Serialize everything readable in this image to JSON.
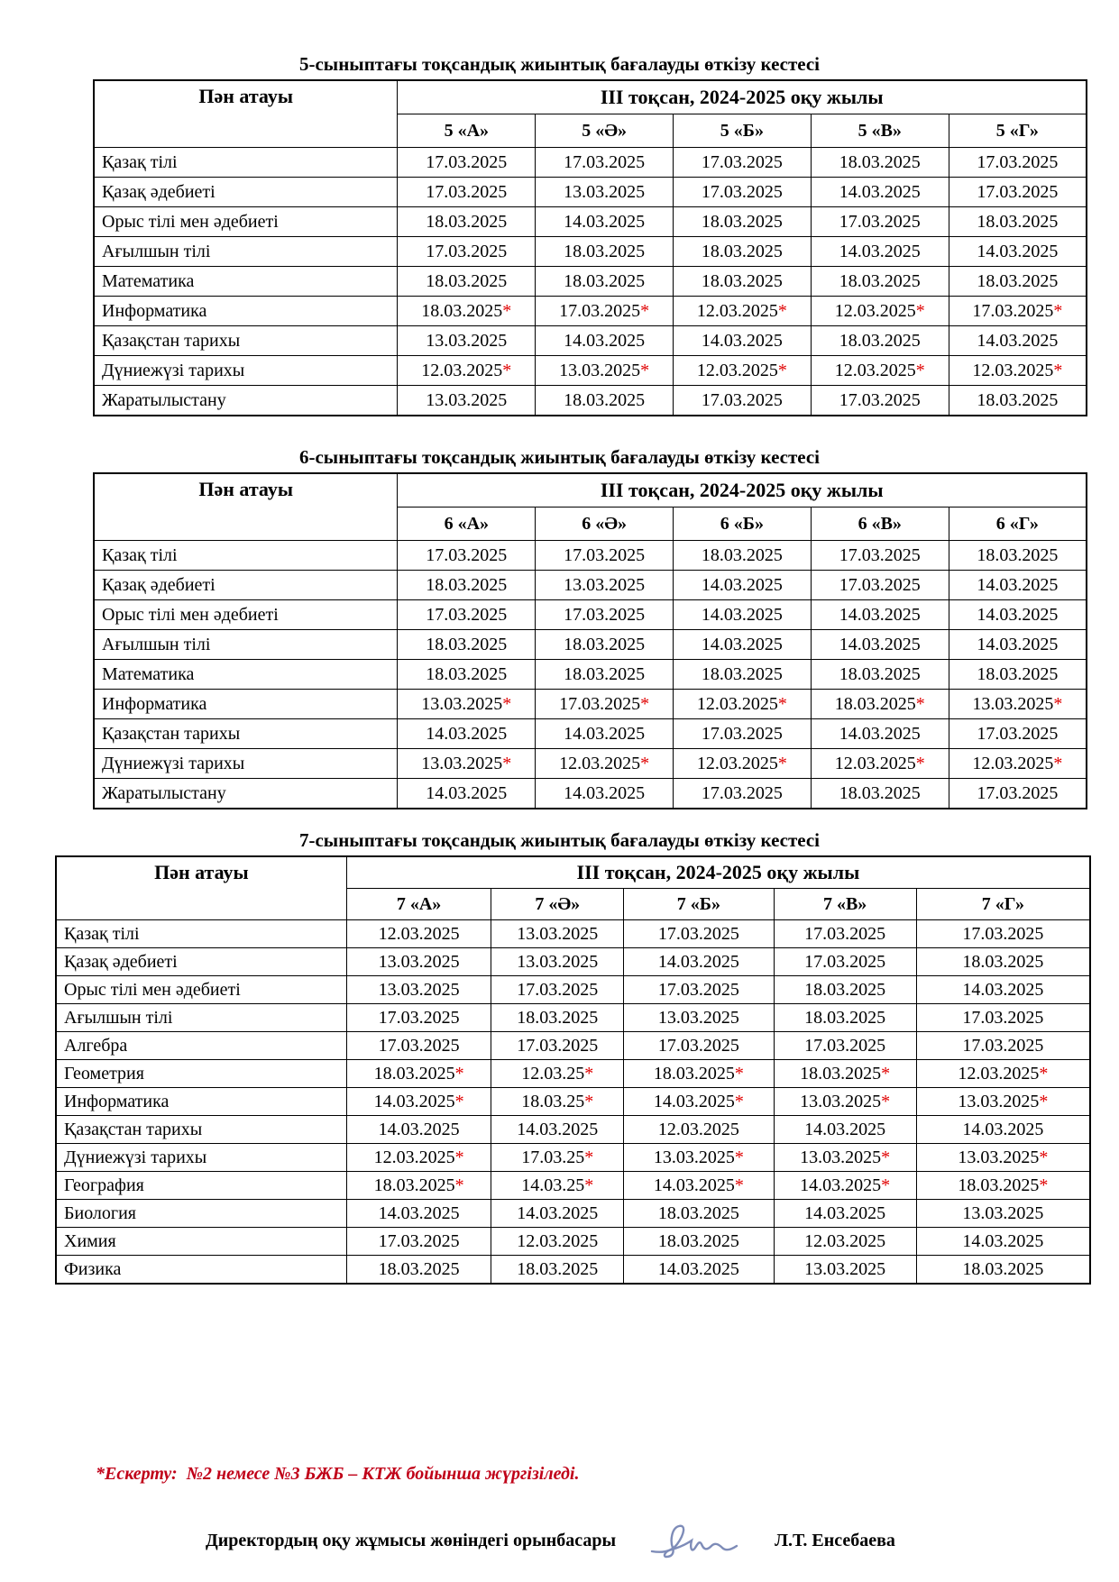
{
  "colors": {
    "asterisk": "#e00000",
    "note_text": "#c00018",
    "signature_ink": "#7080b0"
  },
  "footer": {
    "note": "*Ескерту:  №2 немесе №3 БЖБ – КТЖ бойынша жүргізіледі.",
    "signature_label": "Директордың оқу жұмысы жөніндегі орынбасары",
    "signature_name": "Л.Т. Енсебаева"
  },
  "tables": [
    {
      "grade": "5",
      "title": "5-сыныптағы тоқсандық жиынтық бағалауды өткізу кестесі",
      "subject_header": "Пән атауы",
      "term_header": "ІІІ тоқсан, 2024-2025 оқу жылы",
      "class_headers": [
        "5 «А»",
        "5 «Ә»",
        "5 «Б»",
        "5 «В»",
        "5 «Г»"
      ],
      "rows": [
        {
          "subject": "Қазақ тілі",
          "dates": [
            "17.03.2025",
            "17.03.2025",
            "17.03.2025",
            "18.03.2025",
            "17.03.2025"
          ]
        },
        {
          "subject": "Қазақ әдебиеті",
          "dates": [
            "17.03.2025",
            "13.03.2025",
            "17.03.2025",
            "14.03.2025",
            "17.03.2025"
          ]
        },
        {
          "subject": "Орыс тілі мен әдебиеті",
          "dates": [
            "18.03.2025",
            "14.03.2025",
            "18.03.2025",
            "17.03.2025",
            "18.03.2025"
          ]
        },
        {
          "subject": "Ағылшын тілі",
          "dates": [
            "17.03.2025",
            "18.03.2025",
            "18.03.2025",
            "14.03.2025",
            "14.03.2025"
          ]
        },
        {
          "subject": "Математика",
          "dates": [
            "18.03.2025",
            "18.03.2025",
            "18.03.2025",
            "18.03.2025",
            "18.03.2025"
          ]
        },
        {
          "subject": "Информатика",
          "dates": [
            "18.03.2025*",
            "17.03.2025*",
            "12.03.2025*",
            "12.03.2025*",
            "17.03.2025*"
          ]
        },
        {
          "subject": "Қазақстан тарихы",
          "dates": [
            "13.03.2025",
            "14.03.2025",
            "14.03.2025",
            "18.03.2025",
            "14.03.2025"
          ]
        },
        {
          "subject": "Дүниежүзі тарихы",
          "dates": [
            "12.03.2025*",
            "13.03.2025*",
            "12.03.2025*",
            "12.03.2025*",
            "12.03.2025*"
          ]
        },
        {
          "subject": "Жаратылыстану",
          "dates": [
            "13.03.2025",
            "18.03.2025",
            "17.03.2025",
            "17.03.2025",
            "18.03.2025"
          ]
        }
      ]
    },
    {
      "grade": "6",
      "title": "6-сыныптағы тоқсандық жиынтық бағалауды өткізу кестесі",
      "subject_header": "Пән атауы",
      "term_header": "ІІІ тоқсан, 2024-2025 оқу жылы",
      "class_headers": [
        "6 «А»",
        "6 «Ә»",
        "6 «Б»",
        "6 «В»",
        "6 «Г»"
      ],
      "rows": [
        {
          "subject": "Қазақ тілі",
          "dates": [
            "17.03.2025",
            "17.03.2025",
            "18.03.2025",
            "17.03.2025",
            "18.03.2025"
          ]
        },
        {
          "subject": "Қазақ әдебиеті",
          "dates": [
            "18.03.2025",
            "13.03.2025",
            "14.03.2025",
            "17.03.2025",
            "14.03.2025"
          ]
        },
        {
          "subject": "Орыс тілі мен әдебиеті",
          "dates": [
            "17.03.2025",
            "17.03.2025",
            "14.03.2025",
            "14.03.2025",
            "14.03.2025"
          ]
        },
        {
          "subject": "Ағылшын тілі",
          "dates": [
            "18.03.2025",
            "18.03.2025",
            "14.03.2025",
            "14.03.2025",
            "14.03.2025"
          ]
        },
        {
          "subject": "Математика",
          "dates": [
            "18.03.2025",
            "18.03.2025",
            "18.03.2025",
            "18.03.2025",
            "18.03.2025"
          ]
        },
        {
          "subject": "Информатика",
          "dates": [
            "13.03.2025*",
            "17.03.2025*",
            "12.03.2025*",
            "18.03.2025*",
            "13.03.2025*"
          ]
        },
        {
          "subject": "Қазақстан тарихы",
          "dates": [
            "14.03.2025",
            "14.03.2025",
            "17.03.2025",
            "14.03.2025",
            "17.03.2025"
          ]
        },
        {
          "subject": "Дүниежүзі тарихы",
          "dates": [
            "13.03.2025*",
            "12.03.2025*",
            "12.03.2025*",
            "12.03.2025*",
            "12.03.2025*"
          ]
        },
        {
          "subject": "Жаратылыстану",
          "dates": [
            "14.03.2025",
            "14.03.2025",
            "17.03.2025",
            "18.03.2025",
            "17.03.2025"
          ]
        }
      ]
    },
    {
      "grade": "7",
      "title": "7-сыныптағы тоқсандық жиынтық бағалауды өткізу кестесі",
      "subject_header": "Пән атауы",
      "term_header": "ІІІ тоқсан, 2024-2025 оқу жылы",
      "class_headers": [
        "7 «А»",
        "7 «Ә»",
        "7 «Б»",
        "7 «В»",
        "7 «Г»"
      ],
      "rows": [
        {
          "subject": "Қазақ тілі",
          "dates": [
            "12.03.2025",
            "13.03.2025",
            "17.03.2025",
            "17.03.2025",
            "17.03.2025"
          ]
        },
        {
          "subject": "Қазақ әдебиеті",
          "dates": [
            "13.03.2025",
            "13.03.2025",
            "14.03.2025",
            "17.03.2025",
            "18.03.2025"
          ]
        },
        {
          "subject": "Орыс тілі мен әдебиеті",
          "dates": [
            "13.03.2025",
            "17.03.2025",
            "17.03.2025",
            "18.03.2025",
            "14.03.2025"
          ]
        },
        {
          "subject": "Ағылшын тілі",
          "dates": [
            "17.03.2025",
            "18.03.2025",
            "13.03.2025",
            "18.03.2025",
            "17.03.2025"
          ]
        },
        {
          "subject": "Алгебра",
          "dates": [
            "17.03.2025",
            "17.03.2025",
            "17.03.2025",
            "17.03.2025",
            "17.03.2025"
          ]
        },
        {
          "subject": "Геометрия",
          "dates": [
            "18.03.2025*",
            "12.03.25*",
            "18.03.2025*",
            "18.03.2025*",
            "12.03.2025*"
          ]
        },
        {
          "subject": "Информатика",
          "dates": [
            "14.03.2025*",
            "18.03.25*",
            "14.03.2025*",
            "13.03.2025*",
            "13.03.2025*"
          ]
        },
        {
          "subject": "Қазақстан тарихы",
          "dates": [
            "14.03.2025",
            "14.03.2025",
            "12.03.2025",
            "14.03.2025",
            "14.03.2025"
          ]
        },
        {
          "subject": "Дүниежүзі тарихы",
          "dates": [
            "12.03.2025*",
            "17.03.25*",
            "13.03.2025*",
            "13.03.2025*",
            "13.03.2025*"
          ]
        },
        {
          "subject": "География",
          "dates": [
            "18.03.2025*",
            "14.03.25*",
            "14.03.2025*",
            "14.03.2025*",
            "18.03.2025*"
          ]
        },
        {
          "subject": "Биология",
          "dates": [
            "14.03.2025",
            "14.03.2025",
            "18.03.2025",
            "14.03.2025",
            "13.03.2025"
          ]
        },
        {
          "subject": "Химия",
          "dates": [
            "17.03.2025",
            "12.03.2025",
            "18.03.2025",
            "12.03.2025",
            "14.03.2025"
          ]
        },
        {
          "subject": "Физика",
          "dates": [
            "18.03.2025",
            "18.03.2025",
            "14.03.2025",
            "13.03.2025",
            "18.03.2025"
          ]
        }
      ]
    }
  ]
}
